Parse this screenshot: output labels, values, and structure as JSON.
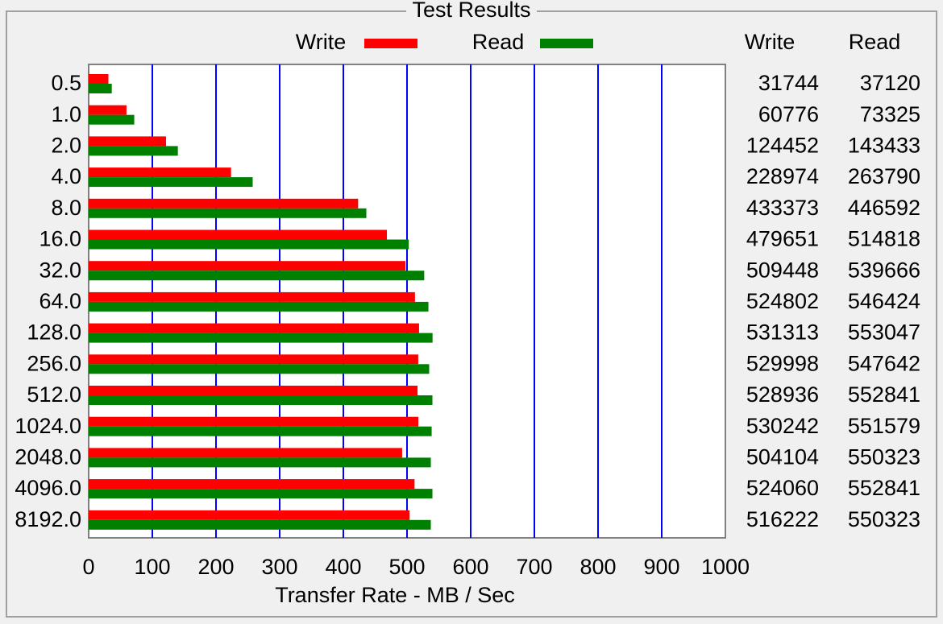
{
  "chart_data": {
    "type": "hbar",
    "title": "Test Results",
    "x_label": "Transfer Rate - MB / Sec",
    "categories": [
      "0.5",
      "1.0",
      "2.0",
      "4.0",
      "8.0",
      "16.0",
      "32.0",
      "64.0",
      "128.0",
      "256.0",
      "512.0",
      "1024.0",
      "2048.0",
      "4096.0",
      "8192.0"
    ],
    "series": [
      {
        "name": "Write",
        "color": "#ff0000",
        "values": [
          31.0,
          59.4,
          121.5,
          223.6,
          423.2,
          468.4,
          497.5,
          512.5,
          518.9,
          517.6,
          516.5,
          517.8,
          492.3,
          511.8,
          504.1
        ]
      },
      {
        "name": "Read",
        "color": "#008000",
        "values": [
          36.3,
          71.6,
          140.1,
          257.6,
          436.1,
          502.7,
          527.0,
          533.6,
          540.1,
          534.8,
          539.9,
          538.7,
          537.4,
          539.9,
          537.4
        ]
      }
    ],
    "xlim": [
      0,
      1000
    ],
    "xticks": [
      0,
      100,
      200,
      300,
      400,
      500,
      600,
      700,
      800,
      900,
      1000
    ],
    "grid": true,
    "grid_color": "#0000ff",
    "table": {
      "columns": [
        "Write",
        "Read"
      ],
      "rows": [
        [
          31744,
          37120
        ],
        [
          60776,
          73325
        ],
        [
          124452,
          143433
        ],
        [
          228974,
          263790
        ],
        [
          433373,
          446592
        ],
        [
          479651,
          514818
        ],
        [
          509448,
          539666
        ],
        [
          524802,
          546424
        ],
        [
          531313,
          553047
        ],
        [
          529998,
          547642
        ],
        [
          528936,
          552841
        ],
        [
          530242,
          551579
        ],
        [
          504104,
          550323
        ],
        [
          524060,
          552841
        ],
        [
          516222,
          550323
        ]
      ]
    }
  }
}
